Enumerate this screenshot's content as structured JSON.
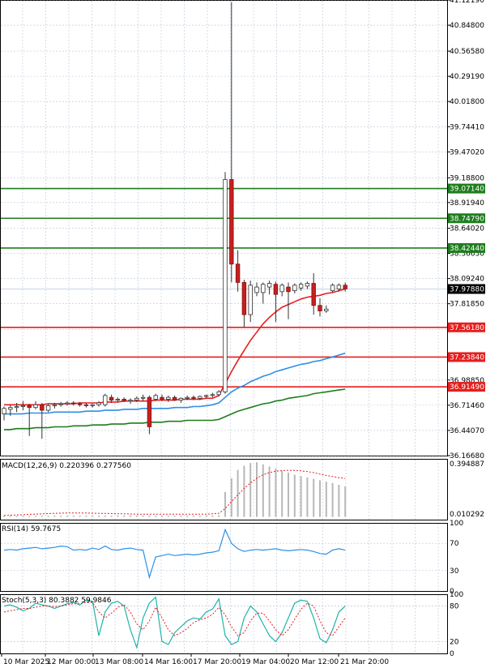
{
  "chart_data": [
    {
      "type": "candlestick",
      "symbol_context": "price",
      "y_ticks": [
        "41.12190",
        "40.84800",
        "40.56580",
        "40.29190",
        "40.01800",
        "39.74410",
        "39.47020",
        "39.18800",
        "38.91940",
        "38.64020",
        "38.36630",
        "38.09240",
        "37.81850",
        "37.53630",
        "36.98850",
        "36.71460",
        "36.44070",
        "36.16680"
      ],
      "ylim": [
        36.1668,
        41.1219
      ],
      "x_ticks": [
        "10 Mar 2025",
        "12 Mar 00:00",
        "13 Mar 08:00",
        "14 Mar 16:00",
        "17 Mar 20:00",
        "19 Mar 04:00",
        "20 Mar 12:00",
        "21 Mar 20:00"
      ],
      "current_price": "37.97880",
      "candles": [
        {
          "o": 36.62,
          "h": 36.7,
          "l": 36.55,
          "c": 36.68
        },
        {
          "o": 36.67,
          "h": 36.72,
          "l": 36.6,
          "c": 36.69
        },
        {
          "o": 36.69,
          "h": 36.74,
          "l": 36.64,
          "c": 36.7
        },
        {
          "o": 36.7,
          "h": 36.76,
          "l": 36.66,
          "c": 36.71
        },
        {
          "o": 36.71,
          "h": 36.73,
          "l": 36.38,
          "c": 36.69
        },
        {
          "o": 36.69,
          "h": 36.76,
          "l": 36.67,
          "c": 36.72
        },
        {
          "o": 36.72,
          "h": 36.74,
          "l": 36.35,
          "c": 36.66
        },
        {
          "o": 36.66,
          "h": 36.73,
          "l": 36.64,
          "c": 36.71
        },
        {
          "o": 36.71,
          "h": 36.74,
          "l": 36.68,
          "c": 36.72
        },
        {
          "o": 36.72,
          "h": 36.75,
          "l": 36.7,
          "c": 36.73
        },
        {
          "o": 36.73,
          "h": 36.76,
          "l": 36.71,
          "c": 36.74
        },
        {
          "o": 36.74,
          "h": 36.76,
          "l": 36.71,
          "c": 36.73
        },
        {
          "o": 36.73,
          "h": 36.75,
          "l": 36.7,
          "c": 36.72
        },
        {
          "o": 36.72,
          "h": 36.74,
          "l": 36.69,
          "c": 36.71
        },
        {
          "o": 36.71,
          "h": 36.73,
          "l": 36.69,
          "c": 36.72
        },
        {
          "o": 36.72,
          "h": 36.76,
          "l": 36.7,
          "c": 36.74
        },
        {
          "o": 36.72,
          "h": 36.84,
          "l": 36.7,
          "c": 36.82
        },
        {
          "o": 36.8,
          "h": 36.83,
          "l": 36.74,
          "c": 36.77
        },
        {
          "o": 36.77,
          "h": 36.8,
          "l": 36.75,
          "c": 36.78
        },
        {
          "o": 36.78,
          "h": 36.8,
          "l": 36.75,
          "c": 36.76
        },
        {
          "o": 36.76,
          "h": 36.79,
          "l": 36.73,
          "c": 36.77
        },
        {
          "o": 36.77,
          "h": 36.81,
          "l": 36.75,
          "c": 36.79
        },
        {
          "o": 36.79,
          "h": 36.83,
          "l": 36.76,
          "c": 36.8
        },
        {
          "o": 36.8,
          "h": 36.82,
          "l": 36.4,
          "c": 36.48
        },
        {
          "o": 36.78,
          "h": 36.84,
          "l": 36.76,
          "c": 36.82
        },
        {
          "o": 36.8,
          "h": 36.83,
          "l": 36.76,
          "c": 36.78
        },
        {
          "o": 36.78,
          "h": 36.82,
          "l": 36.75,
          "c": 36.8
        },
        {
          "o": 36.8,
          "h": 36.82,
          "l": 36.76,
          "c": 36.77
        },
        {
          "o": 36.77,
          "h": 36.8,
          "l": 36.74,
          "c": 36.79
        },
        {
          "o": 36.79,
          "h": 36.82,
          "l": 36.77,
          "c": 36.8
        },
        {
          "o": 36.8,
          "h": 36.82,
          "l": 36.77,
          "c": 36.79
        },
        {
          "o": 36.79,
          "h": 36.82,
          "l": 36.77,
          "c": 36.81
        },
        {
          "o": 36.81,
          "h": 36.83,
          "l": 36.79,
          "c": 36.82
        },
        {
          "o": 36.82,
          "h": 36.85,
          "l": 36.8,
          "c": 36.83
        },
        {
          "o": 36.83,
          "h": 36.88,
          "l": 36.81,
          "c": 36.86
        },
        {
          "o": 36.86,
          "h": 39.25,
          "l": 36.84,
          "c": 39.17
        },
        {
          "o": 39.17,
          "h": 41.1,
          "l": 38.05,
          "c": 38.25
        },
        {
          "o": 38.25,
          "h": 38.4,
          "l": 37.95,
          "c": 38.05
        },
        {
          "o": 38.05,
          "h": 38.08,
          "l": 37.56,
          "c": 37.7
        },
        {
          "o": 37.7,
          "h": 38.07,
          "l": 37.62,
          "c": 38.02
        },
        {
          "o": 37.94,
          "h": 38.05,
          "l": 37.9,
          "c": 38.0
        },
        {
          "o": 37.94,
          "h": 38.05,
          "l": 37.82,
          "c": 38.03
        },
        {
          "o": 38.0,
          "h": 38.07,
          "l": 37.92,
          "c": 38.04
        },
        {
          "o": 38.03,
          "h": 38.06,
          "l": 37.62,
          "c": 37.92
        },
        {
          "o": 37.95,
          "h": 38.04,
          "l": 37.9,
          "c": 38.02
        },
        {
          "o": 38.0,
          "h": 38.05,
          "l": 37.65,
          "c": 37.95
        },
        {
          "o": 37.96,
          "h": 38.04,
          "l": 37.93,
          "c": 38.02
        },
        {
          "o": 37.99,
          "h": 38.05,
          "l": 37.96,
          "c": 38.03
        },
        {
          "o": 38.01,
          "h": 38.06,
          "l": 37.98,
          "c": 38.04
        },
        {
          "o": 38.04,
          "h": 38.15,
          "l": 37.7,
          "c": 37.8
        },
        {
          "o": 37.8,
          "h": 37.88,
          "l": 37.68,
          "c": 37.74
        },
        {
          "o": 37.74,
          "h": 37.8,
          "l": 37.72,
          "c": 37.76
        },
        {
          "o": 37.96,
          "h": 38.04,
          "l": 37.94,
          "c": 38.02
        },
        {
          "o": 37.98,
          "h": 38.04,
          "l": 37.95,
          "c": 38.02
        },
        {
          "o": 38.02,
          "h": 38.05,
          "l": 37.95,
          "c": 37.98
        }
      ],
      "levels": [
        {
          "value": 39.0714,
          "label": "39.07140",
          "color": "#1e7d1e"
        },
        {
          "value": 38.7479,
          "label": "38.74790",
          "color": "#1e7d1e"
        },
        {
          "value": 38.4244,
          "label": "38.42440",
          "color": "#1e7d1e"
        },
        {
          "value": 37.5618,
          "label": "37.56180",
          "color": "#e61e1e"
        },
        {
          "value": 37.2384,
          "label": "37.23840",
          "color": "#e61e1e"
        },
        {
          "value": 36.9149,
          "label": "36.91490",
          "color": "#e61e1e"
        }
      ],
      "moving_averages": [
        {
          "color": "#e61e1e",
          "values": [
            36.72,
            36.72,
            36.72,
            36.72,
            36.72,
            36.72,
            36.72,
            36.73,
            36.73,
            36.73,
            36.73,
            36.73,
            36.74,
            36.74,
            36.74,
            36.74,
            36.75,
            36.75,
            36.75,
            36.76,
            36.76,
            36.76,
            36.76,
            36.76,
            36.77,
            36.77,
            36.77,
            36.77,
            36.78,
            36.78,
            36.78,
            36.78,
            36.79,
            36.79,
            36.82,
            36.95,
            37.08,
            37.2,
            37.31,
            37.42,
            37.51,
            37.6,
            37.67,
            37.73,
            37.78,
            37.81,
            37.84,
            37.87,
            37.89,
            37.9,
            37.91,
            37.93,
            37.94,
            37.96,
            37.98
          ]
        },
        {
          "color": "#2e8fe6",
          "values": [
            36.62,
            36.62,
            36.62,
            36.62,
            36.63,
            36.63,
            36.63,
            36.63,
            36.64,
            36.64,
            36.64,
            36.64,
            36.64,
            36.65,
            36.65,
            36.65,
            36.66,
            36.66,
            36.66,
            36.67,
            36.67,
            36.67,
            36.68,
            36.68,
            36.68,
            36.68,
            36.68,
            36.69,
            36.69,
            36.69,
            36.7,
            36.7,
            36.71,
            36.72,
            36.74,
            36.8,
            36.86,
            36.9,
            36.93,
            36.97,
            37.0,
            37.03,
            37.05,
            37.08,
            37.1,
            37.12,
            37.14,
            37.16,
            37.17,
            37.19,
            37.2,
            37.22,
            37.24,
            37.26,
            37.28
          ]
        },
        {
          "color": "#1e7d1e",
          "values": [
            36.45,
            36.45,
            36.46,
            36.46,
            36.46,
            36.47,
            36.47,
            36.47,
            36.48,
            36.48,
            36.48,
            36.49,
            36.49,
            36.49,
            36.5,
            36.5,
            36.5,
            36.51,
            36.51,
            36.51,
            36.52,
            36.52,
            36.52,
            36.53,
            36.53,
            36.53,
            36.54,
            36.54,
            36.54,
            36.55,
            36.55,
            36.55,
            36.55,
            36.55,
            36.56,
            36.59,
            36.62,
            36.65,
            36.67,
            36.69,
            36.71,
            36.73,
            36.74,
            36.76,
            36.77,
            36.79,
            36.8,
            36.81,
            36.82,
            36.84,
            36.85,
            36.86,
            36.87,
            36.88,
            36.89
          ]
        }
      ]
    },
    {
      "type": "bar",
      "title": "MACD(12,26,9) 0.220396 0.277560",
      "y_ticks": [
        "0.394887",
        "0.010292"
      ],
      "ylim": [
        -0.02,
        0.42
      ],
      "histogram": [
        0.008,
        0.008,
        0.008,
        0.008,
        0.008,
        0.008,
        0.009,
        0.009,
        0.009,
        0.009,
        0.009,
        0.009,
        0.009,
        0.009,
        0.009,
        0.009,
        0.01,
        0.01,
        0.01,
        0.01,
        0.01,
        0.01,
        0.01,
        0.009,
        0.009,
        0.009,
        0.009,
        0.009,
        0.009,
        0.009,
        0.009,
        0.009,
        0.01,
        0.01,
        0.012,
        0.18,
        0.28,
        0.34,
        0.37,
        0.39,
        0.395,
        0.38,
        0.365,
        0.35,
        0.335,
        0.32,
        0.305,
        0.295,
        0.285,
        0.275,
        0.265,
        0.255,
        0.245,
        0.232,
        0.22
      ],
      "signal": [
        0.01,
        0.012,
        0.014,
        0.016,
        0.018,
        0.02,
        0.022,
        0.024,
        0.026,
        0.027,
        0.028,
        0.028,
        0.028,
        0.028,
        0.027,
        0.026,
        0.025,
        0.024,
        0.023,
        0.022,
        0.021,
        0.02,
        0.02,
        0.02,
        0.02,
        0.02,
        0.02,
        0.02,
        0.02,
        0.02,
        0.02,
        0.02,
        0.02,
        0.022,
        0.026,
        0.06,
        0.11,
        0.16,
        0.205,
        0.245,
        0.28,
        0.305,
        0.32,
        0.33,
        0.335,
        0.337,
        0.336,
        0.333,
        0.328,
        0.32,
        0.31,
        0.3,
        0.292,
        0.284,
        0.278
      ]
    },
    {
      "type": "line",
      "title": "RSI(14) 59.7675",
      "y_ticks": [
        "100",
        "70",
        "30",
        "0"
      ],
      "ylim": [
        0,
        100
      ],
      "values": [
        60,
        61,
        60,
        62,
        63,
        64,
        62,
        63,
        64,
        66,
        65,
        60,
        61,
        60,
        63,
        61,
        66,
        61,
        60,
        62,
        63,
        61,
        60,
        20,
        50,
        52,
        54,
        52,
        53,
        54,
        53,
        54,
        56,
        57,
        59,
        90,
        70,
        62,
        58,
        60,
        61,
        60,
        61,
        62,
        60,
        59,
        60,
        61,
        60,
        58,
        55,
        54,
        60,
        62,
        60
      ]
    },
    {
      "type": "line",
      "title": "Stoch(5,3,3) 80.3882 59.9846",
      "y_ticks": [
        "100",
        "80",
        "20",
        "0"
      ],
      "ylim": [
        0,
        100
      ],
      "main": [
        80,
        82,
        78,
        72,
        76,
        85,
        82,
        80,
        76,
        80,
        84,
        86,
        82,
        90,
        88,
        30,
        70,
        85,
        88,
        80,
        40,
        10,
        60,
        85,
        95,
        20,
        15,
        35,
        45,
        55,
        60,
        58,
        70,
        75,
        92,
        30,
        15,
        20,
        60,
        80,
        70,
        50,
        30,
        20,
        35,
        60,
        85,
        90,
        88,
        60,
        25,
        18,
        40,
        70,
        80
      ],
      "signal": [
        70,
        72,
        74,
        76,
        76,
        78,
        80,
        80,
        79,
        80,
        82,
        84,
        84,
        86,
        86,
        70,
        60,
        68,
        78,
        82,
        70,
        50,
        40,
        55,
        78,
        60,
        40,
        30,
        35,
        42,
        52,
        57,
        60,
        66,
        78,
        65,
        45,
        30,
        35,
        55,
        68,
        68,
        55,
        40,
        30,
        40,
        58,
        75,
        85,
        80,
        55,
        35,
        30,
        45,
        60
      ]
    }
  ],
  "time_axis": {
    "labels": [
      "10 Mar 2025",
      "12 Mar 00:00",
      "13 Mar 08:00",
      "14 Mar 16:00",
      "17 Mar 20:00",
      "19 Mar 04:00",
      "20 Mar 12:00",
      "21 Mar 20:00"
    ]
  }
}
